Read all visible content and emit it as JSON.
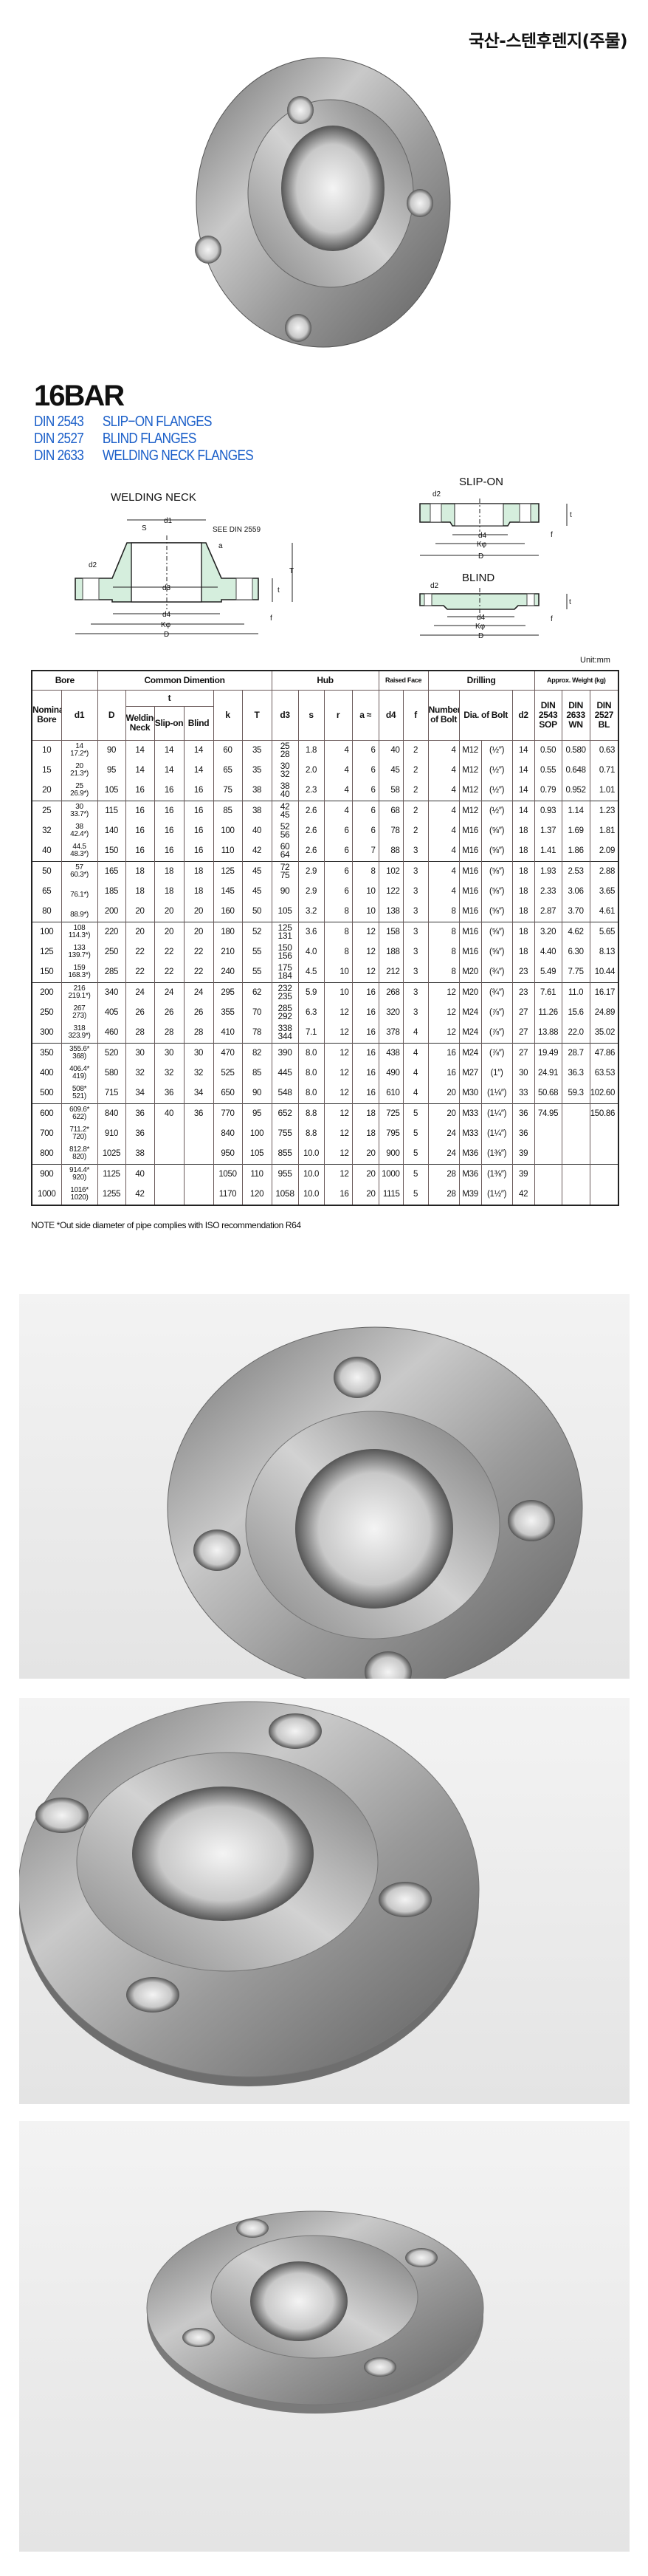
{
  "header": {
    "title": "국산-스텐후렌지(주물)"
  },
  "spec": {
    "title": "16BAR",
    "standards": [
      {
        "code": "DIN 2543",
        "name": "SLIP−ON FLANGES"
      },
      {
        "code": "DIN 2527",
        "name": "BLIND FLANGES"
      },
      {
        "code": "DIN 2633",
        "name": "WELDING NECK FLANGES"
      }
    ]
  },
  "diagrams": {
    "welding_neck": {
      "title": "WELDING NECK",
      "note": "SEE DIN 2559",
      "labels": {
        "d1": "d1",
        "s": "S",
        "a": "a",
        "d2": "d2",
        "d3": "d3",
        "d4": "d4",
        "k": "Kφ",
        "D": "D",
        "T": "T",
        "t": "t",
        "f": "f"
      }
    },
    "slip_on": {
      "title": "SLIP-ON",
      "labels": {
        "d2": "d2",
        "d4": "d4",
        "k": "Kφ",
        "D": "D",
        "t": "t",
        "f": "f"
      }
    },
    "blind": {
      "title": "BLIND",
      "labels": {
        "d2": "d2",
        "d4": "d4",
        "k": "Kφ",
        "D": "D",
        "t": "t",
        "f": "f"
      }
    },
    "colors": {
      "fill": "#d5eedd",
      "line": "#222222"
    }
  },
  "table": {
    "unit": "Unit:mm",
    "groups": {
      "bore": "Bore",
      "common": "Common Dimention",
      "hub": "Hub",
      "raised_face": "Raised Face",
      "drilling": "Drilling",
      "weight": "Approx. Weight (kg)"
    },
    "columns": {
      "nominal": "Nominal Bore",
      "d1": "d1",
      "D": "D",
      "t": "t",
      "wn": "Welding Neck",
      "so": "Slip-on",
      "bl": "Blind",
      "k": "k",
      "T": "T",
      "d3": "d3",
      "s": "s",
      "r": "r",
      "a": "a ≈",
      "d4": "d4",
      "f": "f",
      "n": "Number of Bolt",
      "dia": "Dia. of Bolt",
      "d2": "d2",
      "w_sop": "DIN 2543 SOP",
      "w_wn": "DIN 2633 WN",
      "w_bl": "DIN 2527 BL"
    },
    "rows": [
      {
        "nb": "10",
        "d1": [
          "14",
          "17.2*)"
        ],
        "D": "90",
        "wn": "14",
        "so": "14",
        "bl": "14",
        "k": "60",
        "T": "35",
        "d3": [
          "25",
          "28"
        ],
        "s": "1.8",
        "r": "4",
        "a": "6",
        "d4": "40",
        "f": "2",
        "n": "4",
        "bolt": "M12",
        "inch": "(½″)",
        "d2": "14",
        "sop": "0.50",
        "wnw": "0.580",
        "blw": "0.63"
      },
      {
        "nb": "15",
        "d1": [
          "20",
          "21.3*)"
        ],
        "D": "95",
        "wn": "14",
        "so": "14",
        "bl": "14",
        "k": "65",
        "T": "35",
        "d3": [
          "30",
          "32"
        ],
        "s": "2.0",
        "r": "4",
        "a": "6",
        "d4": "45",
        "f": "2",
        "n": "4",
        "bolt": "M12",
        "inch": "(½″)",
        "d2": "14",
        "sop": "0.55",
        "wnw": "0.648",
        "blw": "0.71"
      },
      {
        "nb": "20",
        "d1": [
          "25",
          "26.9*)"
        ],
        "D": "105",
        "wn": "16",
        "so": "16",
        "bl": "16",
        "k": "75",
        "T": "38",
        "d3": [
          "38",
          "40"
        ],
        "s": "2.3",
        "r": "4",
        "a": "6",
        "d4": "58",
        "f": "2",
        "n": "4",
        "bolt": "M12",
        "inch": "(½″)",
        "d2": "14",
        "sop": "0.79",
        "wnw": "0.952",
        "blw": "1.01"
      },
      {
        "nb": "25",
        "d1": [
          "30",
          "33.7*)"
        ],
        "D": "115",
        "wn": "16",
        "so": "16",
        "bl": "16",
        "k": "85",
        "T": "38",
        "d3": [
          "42",
          "45"
        ],
        "s": "2.6",
        "r": "4",
        "a": "6",
        "d4": "68",
        "f": "2",
        "n": "4",
        "bolt": "M12",
        "inch": "(½″)",
        "d2": "14",
        "sop": "0.93",
        "wnw": "1.14",
        "blw": "1.23"
      },
      {
        "nb": "32",
        "d1": [
          "38",
          "42.4*)"
        ],
        "D": "140",
        "wn": "16",
        "so": "16",
        "bl": "16",
        "k": "100",
        "T": "40",
        "d3": [
          "52",
          "56"
        ],
        "s": "2.6",
        "r": "6",
        "a": "6",
        "d4": "78",
        "f": "2",
        "n": "4",
        "bolt": "M16",
        "inch": "(⅝″)",
        "d2": "18",
        "sop": "1.37",
        "wnw": "1.69",
        "blw": "1.81"
      },
      {
        "nb": "40",
        "d1": [
          "44.5",
          "48.3*)"
        ],
        "D": "150",
        "wn": "16",
        "so": "16",
        "bl": "16",
        "k": "110",
        "T": "42",
        "d3": [
          "60",
          "64"
        ],
        "s": "2.6",
        "r": "6",
        "a": "7",
        "d4": "88",
        "f": "3",
        "n": "4",
        "bolt": "M16",
        "inch": "(⅝″)",
        "d2": "18",
        "sop": "1.41",
        "wnw": "1.86",
        "blw": "2.09"
      },
      {
        "nb": "50",
        "d1": [
          "57",
          "60.3*)"
        ],
        "D": "165",
        "wn": "18",
        "so": "18",
        "bl": "18",
        "k": "125",
        "T": "45",
        "d3": [
          "72",
          "75"
        ],
        "s": "2.9",
        "r": "6",
        "a": "8",
        "d4": "102",
        "f": "3",
        "n": "4",
        "bolt": "M16",
        "inch": "(⅝″)",
        "d2": "18",
        "sop": "1.93",
        "wnw": "2.53",
        "blw": "2.88"
      },
      {
        "nb": "65",
        "d1": [
          "",
          "76.1*)"
        ],
        "D": "185",
        "wn": "18",
        "so": "18",
        "bl": "18",
        "k": "145",
        "T": "45",
        "d3": [
          "90"
        ],
        "s": "2.9",
        "r": "6",
        "a": "10",
        "d4": "122",
        "f": "3",
        "n": "4",
        "bolt": "M16",
        "inch": "(⅝″)",
        "d2": "18",
        "sop": "2.33",
        "wnw": "3.06",
        "blw": "3.65"
      },
      {
        "nb": "80",
        "d1": [
          "",
          "88.9*)"
        ],
        "D": "200",
        "wn": "20",
        "so": "20",
        "bl": "20",
        "k": "160",
        "T": "50",
        "d3": [
          "105"
        ],
        "s": "3.2",
        "r": "8",
        "a": "10",
        "d4": "138",
        "f": "3",
        "n": "8",
        "bolt": "M16",
        "inch": "(⅝″)",
        "d2": "18",
        "sop": "2.87",
        "wnw": "3.70",
        "blw": "4.61"
      },
      {
        "nb": "100",
        "d1": [
          "108",
          "114.3*)"
        ],
        "D": "220",
        "wn": "20",
        "so": "20",
        "bl": "20",
        "k": "180",
        "T": "52",
        "d3": [
          "125",
          "131"
        ],
        "s": "3.6",
        "r": "8",
        "a": "12",
        "d4": "158",
        "f": "3",
        "n": "8",
        "bolt": "M16",
        "inch": "(⅝″)",
        "d2": "18",
        "sop": "3.20",
        "wnw": "4.62",
        "blw": "5.65"
      },
      {
        "nb": "125",
        "d1": [
          "133",
          "139.7*)"
        ],
        "D": "250",
        "wn": "22",
        "so": "22",
        "bl": "22",
        "k": "210",
        "T": "55",
        "d3": [
          "150",
          "156"
        ],
        "s": "4.0",
        "r": "8",
        "a": "12",
        "d4": "188",
        "f": "3",
        "n": "8",
        "bolt": "M16",
        "inch": "(⅝″)",
        "d2": "18",
        "sop": "4.40",
        "wnw": "6.30",
        "blw": "8.13"
      },
      {
        "nb": "150",
        "d1": [
          "159",
          "168.3*)"
        ],
        "D": "285",
        "wn": "22",
        "so": "22",
        "bl": "22",
        "k": "240",
        "T": "55",
        "d3": [
          "175",
          "184"
        ],
        "s": "4.5",
        "r": "10",
        "a": "12",
        "d4": "212",
        "f": "3",
        "n": "8",
        "bolt": "M20",
        "inch": "(¾″)",
        "d2": "23",
        "sop": "5.49",
        "wnw": "7.75",
        "blw": "10.44"
      },
      {
        "nb": "200",
        "d1": [
          "216",
          "219.1*)"
        ],
        "D": "340",
        "wn": "24",
        "so": "24",
        "bl": "24",
        "k": "295",
        "T": "62",
        "d3": [
          "232",
          "235"
        ],
        "s": "5.9",
        "r": "10",
        "a": "16",
        "d4": "268",
        "f": "3",
        "n": "12",
        "bolt": "M20",
        "inch": "(¾″)",
        "d2": "23",
        "sop": "7.61",
        "wnw": "11.0",
        "blw": "16.17"
      },
      {
        "nb": "250",
        "d1": [
          "267",
          "273)"
        ],
        "D": "405",
        "wn": "26",
        "so": "26",
        "bl": "26",
        "k": "355",
        "T": "70",
        "d3": [
          "285",
          "292"
        ],
        "s": "6.3",
        "r": "12",
        "a": "16",
        "d4": "320",
        "f": "3",
        "n": "12",
        "bolt": "M24",
        "inch": "(⅞″)",
        "d2": "27",
        "sop": "11.26",
        "wnw": "15.6",
        "blw": "24.89"
      },
      {
        "nb": "300",
        "d1": [
          "318",
          "323.9*)"
        ],
        "D": "460",
        "wn": "28",
        "so": "28",
        "bl": "28",
        "k": "410",
        "T": "78",
        "d3": [
          "338",
          "344"
        ],
        "s": "7.1",
        "r": "12",
        "a": "16",
        "d4": "378",
        "f": "4",
        "n": "12",
        "bolt": "M24",
        "inch": "(⅞″)",
        "d2": "27",
        "sop": "13.88",
        "wnw": "22.0",
        "blw": "35.02"
      },
      {
        "nb": "350",
        "d1": [
          "355.6*",
          "368)"
        ],
        "D": "520",
        "wn": "30",
        "so": "30",
        "bl": "30",
        "k": "470",
        "T": "82",
        "d3": [
          "390"
        ],
        "s": "8.0",
        "r": "12",
        "a": "16",
        "d4": "438",
        "f": "4",
        "n": "16",
        "bolt": "M24",
        "inch": "(⅞″)",
        "d2": "27",
        "sop": "19.49",
        "wnw": "28.7",
        "blw": "47.86"
      },
      {
        "nb": "400",
        "d1": [
          "406.4*",
          "419)"
        ],
        "D": "580",
        "wn": "32",
        "so": "32",
        "bl": "32",
        "k": "525",
        "T": "85",
        "d3": [
          "445"
        ],
        "s": "8.0",
        "r": "12",
        "a": "16",
        "d4": "490",
        "f": "4",
        "n": "16",
        "bolt": "M27",
        "inch": "(1″)",
        "d2": "30",
        "sop": "24.91",
        "wnw": "36.3",
        "blw": "63.53"
      },
      {
        "nb": "500",
        "d1": [
          "508*",
          "521)"
        ],
        "D": "715",
        "wn": "34",
        "so": "36",
        "bl": "34",
        "k": "650",
        "T": "90",
        "d3": [
          "548"
        ],
        "s": "8.0",
        "r": "12",
        "a": "16",
        "d4": "610",
        "f": "4",
        "n": "20",
        "bolt": "M30",
        "inch": "(1⅛″)",
        "d2": "33",
        "sop": "50.68",
        "wnw": "59.3",
        "blw": "102.60"
      },
      {
        "nb": "600",
        "d1": [
          "609.6*",
          "622)"
        ],
        "D": "840",
        "wn": "36",
        "so": "40",
        "bl": "36",
        "k": "770",
        "T": "95",
        "d3": [
          "652"
        ],
        "s": "8.8",
        "r": "12",
        "a": "18",
        "d4": "725",
        "f": "5",
        "n": "20",
        "bolt": "M33",
        "inch": "(1¼″)",
        "d2": "36",
        "sop": "74.95",
        "wnw": "",
        "blw": "150.86"
      },
      {
        "nb": "700",
        "d1": [
          "711.2*",
          "720)"
        ],
        "D": "910",
        "wn": "36",
        "so": "",
        "bl": "",
        "k": "840",
        "T": "100",
        "d3": [
          "755"
        ],
        "s": "8.8",
        "r": "12",
        "a": "18",
        "d4": "795",
        "f": "5",
        "n": "24",
        "bolt": "M33",
        "inch": "(1¼″)",
        "d2": "36",
        "sop": "",
        "wnw": "",
        "blw": ""
      },
      {
        "nb": "800",
        "d1": [
          "812.8*",
          "820)"
        ],
        "D": "1025",
        "wn": "38",
        "so": "",
        "bl": "",
        "k": "950",
        "T": "105",
        "d3": [
          "855"
        ],
        "s": "10.0",
        "r": "12",
        "a": "20",
        "d4": "900",
        "f": "5",
        "n": "24",
        "bolt": "M36",
        "inch": "(1⅜″)",
        "d2": "39",
        "sop": "",
        "wnw": "",
        "blw": ""
      },
      {
        "nb": "900",
        "d1": [
          "914.4*",
          "920)"
        ],
        "D": "1125",
        "wn": "40",
        "so": "",
        "bl": "",
        "k": "1050",
        "T": "110",
        "d3": [
          "955"
        ],
        "s": "10.0",
        "r": "12",
        "a": "20",
        "d4": "1000",
        "f": "5",
        "n": "28",
        "bolt": "M36",
        "inch": "(1⅜″)",
        "d2": "39",
        "sop": "",
        "wnw": "",
        "blw": ""
      },
      {
        "nb": "1000",
        "d1": [
          "1016*",
          "1020)"
        ],
        "D": "1255",
        "wn": "42",
        "so": "",
        "bl": "",
        "k": "1170",
        "T": "120",
        "d3": [
          "1058"
        ],
        "s": "10.0",
        "r": "16",
        "a": "20",
        "d4": "1115",
        "f": "5",
        "n": "28",
        "bolt": "M39",
        "inch": "(1½″)",
        "d2": "42",
        "sop": "",
        "wnw": "",
        "blw": ""
      }
    ],
    "note": "NOTE *Out side diameter of pipe complies with ISO recommendation R64"
  },
  "photos": [
    {
      "icon": "flange-photo-top"
    },
    {
      "icon": "flange-photo-front"
    },
    {
      "icon": "flange-photo-angled"
    },
    {
      "icon": "flange-photo-side"
    }
  ]
}
